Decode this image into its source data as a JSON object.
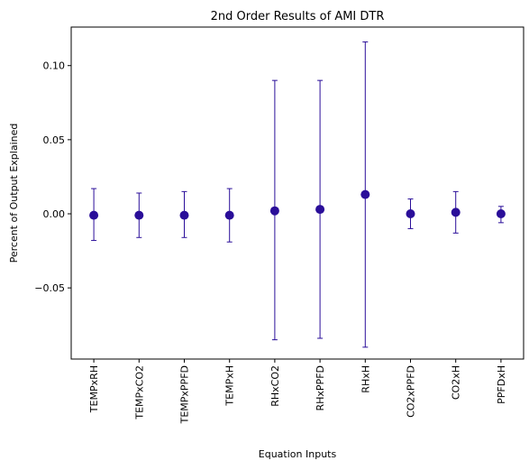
{
  "chart_data": {
    "type": "scatter",
    "title": "2nd Order Results of AMI DTR",
    "xlabel": "Equation Inputs",
    "ylabel": "Percent of Output Explained",
    "categories": [
      "TEMPxRH",
      "TEMPxCO2",
      "TEMPxPPFD",
      "TEMPxH",
      "RHxCO2",
      "RHxPPFD",
      "RHxH",
      "CO2xPPFD",
      "CO2xH",
      "PPFDxH"
    ],
    "values": [
      -0.001,
      -0.001,
      -0.001,
      -0.001,
      0.002,
      0.003,
      0.013,
      0.0,
      0.001,
      0.0
    ],
    "error_low": [
      -0.018,
      -0.016,
      -0.016,
      -0.019,
      -0.085,
      -0.084,
      -0.09,
      -0.01,
      -0.013,
      -0.006
    ],
    "error_high": [
      0.017,
      0.014,
      0.015,
      0.017,
      0.09,
      0.09,
      0.116,
      0.01,
      0.015,
      0.005
    ],
    "ylim": [
      -0.098,
      0.126
    ],
    "yticks": [
      -0.05,
      0.0,
      0.05,
      0.1
    ],
    "ytick_labels": [
      "−0.05",
      "0.00",
      "0.05",
      "0.10"
    ],
    "grid": false,
    "colors": {
      "marker": "#2a0e99",
      "errorbar": "#2a0e99"
    }
  }
}
